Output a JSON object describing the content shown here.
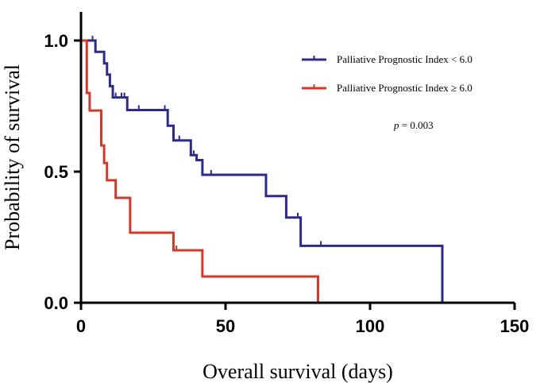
{
  "chart_data": {
    "type": "line",
    "subtype": "kaplan-meier",
    "title": "",
    "xlabel": "Overall survival (days)",
    "ylabel": "Probability of survival",
    "xlim": [
      0,
      150
    ],
    "ylim": [
      0,
      1.0
    ],
    "xticks": [
      "0",
      "50",
      "100",
      "150"
    ],
    "xtick_values": [
      0,
      50,
      100,
      150
    ],
    "yticks": [
      "0.0",
      "0.5",
      "1.0"
    ],
    "ytick_values": [
      0,
      0.5,
      1.0
    ],
    "grid": false,
    "legend_position": "top-right",
    "annotation": {
      "prefix": "p",
      "text": " = 0.003"
    },
    "series": [
      {
        "name": "Palliative Prognostic Index < 6.0",
        "color": "#2e2a8c",
        "steps": [
          [
            0,
            1.0
          ],
          [
            5,
            0.957
          ],
          [
            8,
            0.913
          ],
          [
            9,
            0.87
          ],
          [
            10,
            0.826
          ],
          [
            11,
            0.783
          ],
          [
            16,
            0.735
          ],
          [
            30,
            0.675
          ],
          [
            32,
            0.619
          ],
          [
            38,
            0.563
          ],
          [
            40,
            0.544
          ],
          [
            42,
            0.488
          ],
          [
            64,
            0.407
          ],
          [
            71,
            0.325
          ],
          [
            76,
            0.217
          ],
          [
            125,
            0
          ]
        ],
        "censored": [
          [
            4,
            1.0
          ],
          [
            12,
            0.783
          ],
          [
            14,
            0.783
          ],
          [
            15,
            0.783
          ],
          [
            20,
            0.735
          ],
          [
            29,
            0.735
          ],
          [
            34,
            0.619
          ],
          [
            39,
            0.563
          ],
          [
            45,
            0.488
          ],
          [
            75,
            0.325
          ],
          [
            83,
            0.217
          ]
        ]
      },
      {
        "name": "Palliative Prognostic Index ≥ 6.0",
        "color": "#d13a2a",
        "steps": [
          [
            0,
            1.0
          ],
          [
            2,
            0.8
          ],
          [
            3,
            0.733
          ],
          [
            7,
            0.6
          ],
          [
            8,
            0.533
          ],
          [
            9,
            0.467
          ],
          [
            12,
            0.4
          ],
          [
            17,
            0.267
          ],
          [
            32,
            0.2
          ],
          [
            42,
            0.1
          ],
          [
            82,
            0
          ]
        ],
        "censored": [
          [
            33,
            0.2
          ]
        ]
      }
    ]
  }
}
